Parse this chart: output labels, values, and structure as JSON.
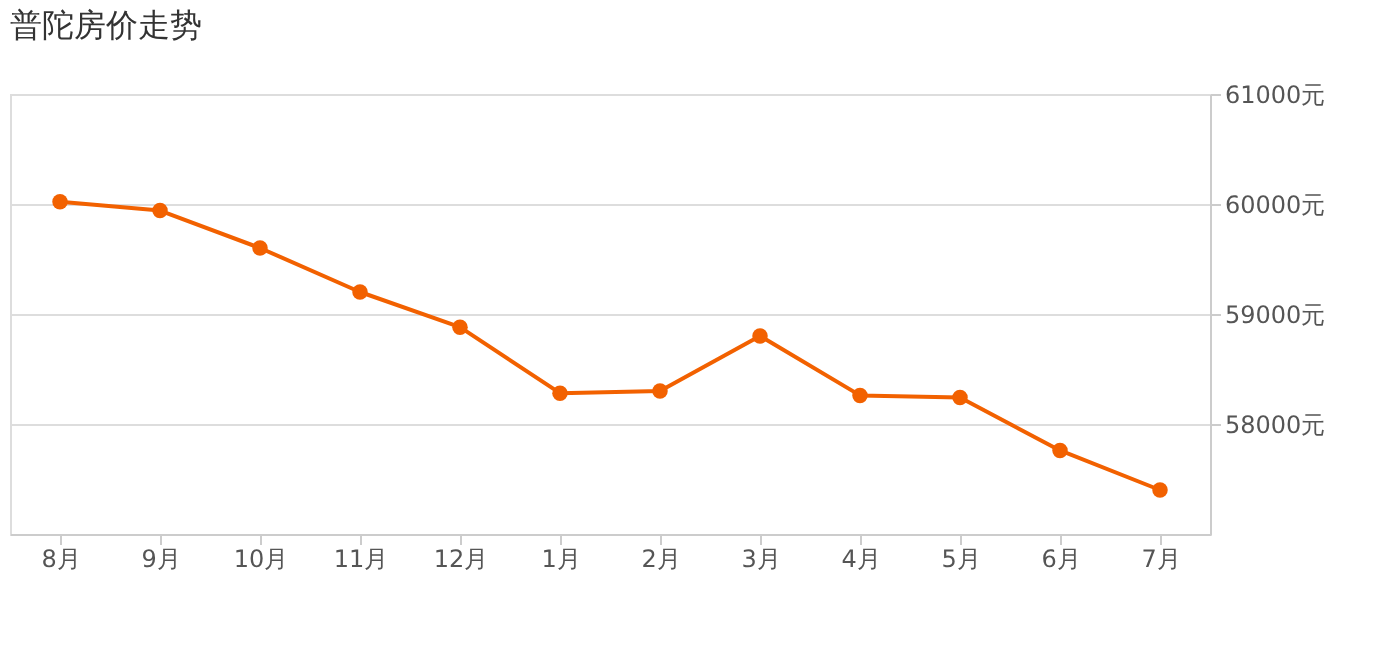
{
  "chart_data": {
    "type": "line",
    "title": "普陀房价走势",
    "categories": [
      "8月",
      "9月",
      "10月",
      "11月",
      "12月",
      "1月",
      "2月",
      "3月",
      "4月",
      "5月",
      "6月",
      "7月"
    ],
    "series": [
      {
        "color": "#f26100",
        "values": [
          60020,
          59940,
          59600,
          59200,
          58880,
          58280,
          58300,
          58800,
          58260,
          58240,
          57760,
          57400
        ]
      }
    ],
    "ylim": [
      57000,
      61000
    ],
    "yticks": [
      {
        "value": 58000,
        "label": "58000元"
      },
      {
        "value": 59000,
        "label": "59000元"
      },
      {
        "value": 60000,
        "label": "60000元"
      },
      {
        "value": 61000,
        "label": "61000元"
      }
    ],
    "grid": "y",
    "marker": "circle",
    "line_style": "solid"
  }
}
